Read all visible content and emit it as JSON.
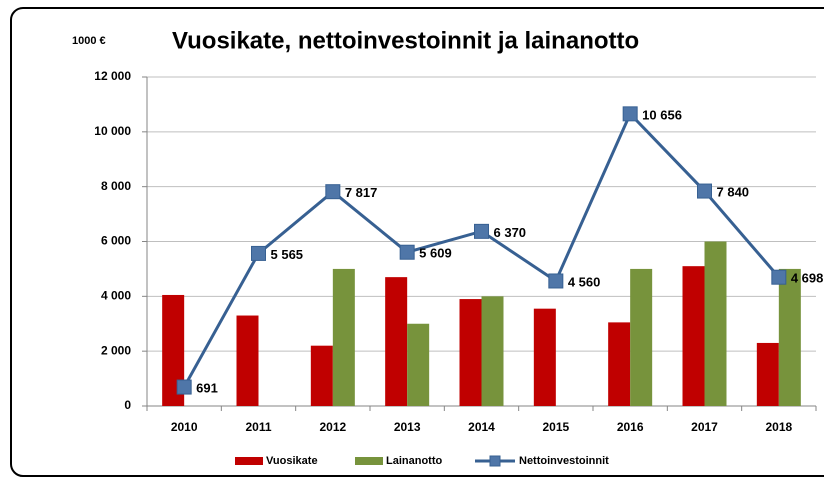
{
  "chart_data": {
    "type": "bar_line",
    "title": "Vuosikate, nettoinvestoinnit ja lainanotto",
    "unit_label": "1000 €",
    "categories": [
      "2010",
      "2011",
      "2012",
      "2013",
      "2014",
      "2015",
      "2016",
      "2017",
      "2018"
    ],
    "series": [
      {
        "name": "Vuosikate",
        "type": "bar",
        "color": "#c00000",
        "values": [
          4050,
          3300,
          2200,
          4700,
          3900,
          3550,
          3050,
          5100,
          2300
        ]
      },
      {
        "name": "Lainanotto",
        "type": "bar",
        "color": "#77933c",
        "values": [
          0,
          0,
          5000,
          3000,
          4000,
          0,
          5000,
          6000,
          5000
        ]
      },
      {
        "name": "Nettoinvestoinnit",
        "type": "line",
        "color": "#376092",
        "marker_color": "#4f76a8",
        "values": [
          691,
          5565,
          7817,
          5609,
          6370,
          4560,
          10656,
          7840,
          4698
        ],
        "value_labels": [
          "691",
          "5 565",
          "7 817",
          "5 609",
          "6 370",
          "4 560",
          "10 656",
          "7 840",
          "4 698"
        ]
      }
    ],
    "ylim": [
      0,
      12000
    ],
    "yticks": [
      0,
      {
        "value": 2000,
        "label": "2 000"
      },
      {
        "value": 4000,
        "label": "4 000"
      },
      {
        "value": 6000,
        "label": "6 000"
      },
      {
        "value": 8000,
        "label": "8 000"
      },
      {
        "value": 10000,
        "label": "10 000"
      },
      {
        "value": 12000,
        "label": "12 000"
      }
    ],
    "grid": true,
    "legend": "bottom"
  }
}
